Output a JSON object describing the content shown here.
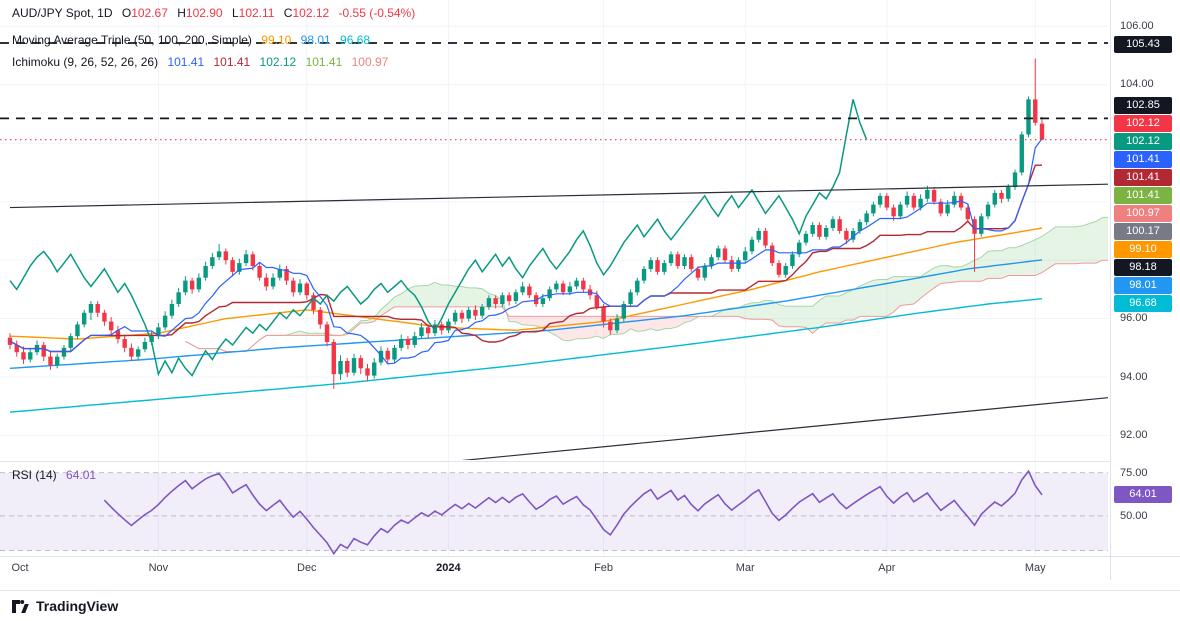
{
  "header": {
    "symbol_line": "AUD/JPY Spot, 1D",
    "change_color": "#f23645",
    "ohlc": [
      {
        "label": "O",
        "value": "102.67"
      },
      {
        "label": "H",
        "value": "102.90"
      },
      {
        "label": "L",
        "value": "102.11"
      },
      {
        "label": "C",
        "value": "102.12"
      }
    ],
    "change": "-0.55 (-0.54%)",
    "ma_title": "Moving Average Triple (50, 100, 200, Simple)",
    "ma_values": [
      {
        "text": "99.10",
        "color": "#ff9800"
      },
      {
        "text": "98.01",
        "color": "#2196f3"
      },
      {
        "text": "96.68",
        "color": "#00bcd4"
      }
    ],
    "ichimoku_title": "Ichimoku (9, 26, 52, 26, 26)",
    "ichimoku_values": [
      {
        "text": "101.41",
        "color": "#2962ff"
      },
      {
        "text": "101.41",
        "color": "#b22833"
      },
      {
        "text": "102.12",
        "color": "#089981"
      },
      {
        "text": "101.41",
        "color": "#7cb342"
      },
      {
        "text": "100.97",
        "color": "#f08080"
      }
    ]
  },
  "rsi_legend": {
    "title": "RSI (14)",
    "value": "64.01",
    "value_color": "#7e57c2"
  },
  "price_axis": {
    "ticks": [
      {
        "label": "106.00"
      },
      {
        "label": "104.00"
      },
      {
        "label": "96.00"
      },
      {
        "label": "94.00"
      },
      {
        "label": "92.00"
      }
    ],
    "badges": [
      {
        "label": "105.43",
        "color": "#131722"
      },
      {
        "label": "102.85",
        "color": "#131722"
      },
      {
        "label": "102.12",
        "color": "#f23645"
      },
      {
        "label": "102.12",
        "color": "#089981"
      },
      {
        "label": "101.41",
        "color": "#2962ff"
      },
      {
        "label": "101.41",
        "color": "#b22833"
      },
      {
        "label": "101.41",
        "color": "#7cb342"
      },
      {
        "label": "100.97",
        "color": "#f08080"
      },
      {
        "label": "100.17",
        "color": "#787b86"
      },
      {
        "label": "99.10",
        "color": "#ff9800"
      },
      {
        "label": "98.18",
        "color": "#131722"
      },
      {
        "label": "98.01",
        "color": "#2196f3"
      },
      {
        "label": "96.68",
        "color": "#00bcd4"
      }
    ],
    "rsi_ticks": [
      {
        "label": "75.00"
      },
      {
        "label": "50.00"
      }
    ],
    "rsi_badge": {
      "label": "64.01",
      "color": "#7e57c2"
    }
  },
  "time_axis": {
    "labels": [
      {
        "text": "Oct",
        "bar": 0
      },
      {
        "text": "Nov",
        "bar": 22
      },
      {
        "text": "Dec",
        "bar": 44
      },
      {
        "text": "2024",
        "bar": 65,
        "bold": true
      },
      {
        "text": "Feb",
        "bar": 88
      },
      {
        "text": "Mar",
        "bar": 109
      },
      {
        "text": "Apr",
        "bar": 130
      },
      {
        "text": "May",
        "bar": 152
      }
    ]
  },
  "footer": {
    "brand": "TradingView"
  },
  "chart_data": {
    "type": "candlestick",
    "symbol": "AUD/JPY Spot",
    "interval": "1D",
    "last": {
      "open": 102.67,
      "high": 102.9,
      "low": 102.11,
      "close": 102.12,
      "change": -0.55,
      "change_pct": -0.54
    },
    "price_ylim": [
      91.3,
      106.9
    ],
    "colors": {
      "up": "#089981",
      "down": "#f23645"
    },
    "candles": [
      [
        95.35,
        95.5,
        94.95,
        95.1
      ],
      [
        95.1,
        95.25,
        94.7,
        94.85
      ],
      [
        94.85,
        95.05,
        94.45,
        94.6
      ],
      [
        94.6,
        95.0,
        94.5,
        94.85
      ],
      [
        94.85,
        95.25,
        94.75,
        95.1
      ],
      [
        95.1,
        95.2,
        94.55,
        94.7
      ],
      [
        94.7,
        94.9,
        94.25,
        94.4
      ],
      [
        94.4,
        94.8,
        94.3,
        94.7
      ],
      [
        94.7,
        95.1,
        94.6,
        95.0
      ],
      [
        95.0,
        95.5,
        94.9,
        95.4
      ],
      [
        95.4,
        95.9,
        95.3,
        95.8
      ],
      [
        95.8,
        96.3,
        95.7,
        96.2
      ],
      [
        96.2,
        96.6,
        95.95,
        96.5
      ],
      [
        96.5,
        96.6,
        96.05,
        96.2
      ],
      [
        96.2,
        96.3,
        95.75,
        95.9
      ],
      [
        95.9,
        96.05,
        95.45,
        95.6
      ],
      [
        95.6,
        95.75,
        95.15,
        95.3
      ],
      [
        95.3,
        95.45,
        94.85,
        95.0
      ],
      [
        95.0,
        95.15,
        94.55,
        94.7
      ],
      [
        94.7,
        95.05,
        94.6,
        94.95
      ],
      [
        94.95,
        95.35,
        94.85,
        95.2
      ],
      [
        95.2,
        95.55,
        95.1,
        95.4
      ],
      [
        95.4,
        95.85,
        95.3,
        95.7
      ],
      [
        95.7,
        96.25,
        95.6,
        96.1
      ],
      [
        96.1,
        96.65,
        96.0,
        96.5
      ],
      [
        96.5,
        97.05,
        96.4,
        96.9
      ],
      [
        96.9,
        97.45,
        96.8,
        97.3
      ],
      [
        97.3,
        97.4,
        96.85,
        97.0
      ],
      [
        97.0,
        97.55,
        96.9,
        97.4
      ],
      [
        97.4,
        97.95,
        97.3,
        97.8
      ],
      [
        97.8,
        98.25,
        97.7,
        98.1
      ],
      [
        98.1,
        98.55,
        98.0,
        98.3
      ],
      [
        98.3,
        98.4,
        97.85,
        98.0
      ],
      [
        98.0,
        98.1,
        97.45,
        97.6
      ],
      [
        97.6,
        98.05,
        97.5,
        97.9
      ],
      [
        97.9,
        98.35,
        97.8,
        98.2
      ],
      [
        98.2,
        98.3,
        97.65,
        97.8
      ],
      [
        97.8,
        97.9,
        97.3,
        97.4
      ],
      [
        97.4,
        97.55,
        96.95,
        97.1
      ],
      [
        97.1,
        97.55,
        97.0,
        97.4
      ],
      [
        97.4,
        97.85,
        97.3,
        97.7
      ],
      [
        97.7,
        97.8,
        97.15,
        97.3
      ],
      [
        97.3,
        97.4,
        96.75,
        96.9
      ],
      [
        96.9,
        97.35,
        96.8,
        97.2
      ],
      [
        97.2,
        97.25,
        96.65,
        96.8
      ],
      [
        96.8,
        96.9,
        96.15,
        96.3
      ],
      [
        96.3,
        96.4,
        95.65,
        95.8
      ],
      [
        95.8,
        95.9,
        95.05,
        95.2
      ],
      [
        95.2,
        95.3,
        93.6,
        94.1
      ],
      [
        94.1,
        94.75,
        93.9,
        94.55
      ],
      [
        94.55,
        94.65,
        94.0,
        94.15
      ],
      [
        94.15,
        94.8,
        94.05,
        94.65
      ],
      [
        94.65,
        94.75,
        94.1,
        94.3
      ],
      [
        94.3,
        94.45,
        93.85,
        94.05
      ],
      [
        94.05,
        94.65,
        93.95,
        94.5
      ],
      [
        94.5,
        95.05,
        94.4,
        94.9
      ],
      [
        94.9,
        95.0,
        94.45,
        94.6
      ],
      [
        94.6,
        95.1,
        94.5,
        95.0
      ],
      [
        95.0,
        95.45,
        94.9,
        95.3
      ],
      [
        95.3,
        95.4,
        94.95,
        95.1
      ],
      [
        95.1,
        95.55,
        95.0,
        95.4
      ],
      [
        95.4,
        95.85,
        95.3,
        95.7
      ],
      [
        95.7,
        95.8,
        95.35,
        95.5
      ],
      [
        95.5,
        95.95,
        95.4,
        95.8
      ],
      [
        95.8,
        95.9,
        95.45,
        95.6
      ],
      [
        95.6,
        96.0,
        95.5,
        95.9
      ],
      [
        95.9,
        96.3,
        95.8,
        96.2
      ],
      [
        96.2,
        96.3,
        95.85,
        96.0
      ],
      [
        96.0,
        96.4,
        95.9,
        96.3
      ],
      [
        96.3,
        96.45,
        95.95,
        96.1
      ],
      [
        96.1,
        96.5,
        96.0,
        96.4
      ],
      [
        96.4,
        96.8,
        96.3,
        96.7
      ],
      [
        96.7,
        96.8,
        96.35,
        96.5
      ],
      [
        96.5,
        96.9,
        96.4,
        96.8
      ],
      [
        96.8,
        96.9,
        96.45,
        96.6
      ],
      [
        96.6,
        97.0,
        96.5,
        96.9
      ],
      [
        96.9,
        97.25,
        96.8,
        97.1
      ],
      [
        97.1,
        97.2,
        96.7,
        96.8
      ],
      [
        96.8,
        96.9,
        96.4,
        96.5
      ],
      [
        96.5,
        96.85,
        96.4,
        96.7
      ],
      [
        96.7,
        97.1,
        96.6,
        97.0
      ],
      [
        97.0,
        97.3,
        96.9,
        97.2
      ],
      [
        97.2,
        97.3,
        96.8,
        96.9
      ],
      [
        96.9,
        97.25,
        96.8,
        97.1
      ],
      [
        97.1,
        97.4,
        97.0,
        97.3
      ],
      [
        97.3,
        97.4,
        96.9,
        97.0
      ],
      [
        97.0,
        97.15,
        96.65,
        96.8
      ],
      [
        96.8,
        96.95,
        96.3,
        96.4
      ],
      [
        96.4,
        96.5,
        95.7,
        95.9
      ],
      [
        95.9,
        96.0,
        95.45,
        95.6
      ],
      [
        95.6,
        96.15,
        95.5,
        96.0
      ],
      [
        96.0,
        96.6,
        95.9,
        96.5
      ],
      [
        96.5,
        97.0,
        96.4,
        96.9
      ],
      [
        96.9,
        97.4,
        96.8,
        97.3
      ],
      [
        97.3,
        97.8,
        97.2,
        97.7
      ],
      [
        97.7,
        98.1,
        97.6,
        98.0
      ],
      [
        98.0,
        98.1,
        97.5,
        97.6
      ],
      [
        97.6,
        98.0,
        97.5,
        97.9
      ],
      [
        97.9,
        98.3,
        97.8,
        98.2
      ],
      [
        98.2,
        98.3,
        97.7,
        97.8
      ],
      [
        97.8,
        98.2,
        97.7,
        98.1
      ],
      [
        98.1,
        98.2,
        97.6,
        97.7
      ],
      [
        97.7,
        97.8,
        97.3,
        97.4
      ],
      [
        97.4,
        97.9,
        97.3,
        97.8
      ],
      [
        97.8,
        98.2,
        97.7,
        98.1
      ],
      [
        98.1,
        98.5,
        98.0,
        98.4
      ],
      [
        98.4,
        98.5,
        97.9,
        98.0
      ],
      [
        98.0,
        98.15,
        97.6,
        97.7
      ],
      [
        97.7,
        98.1,
        97.6,
        98.0
      ],
      [
        98.0,
        98.45,
        97.9,
        98.3
      ],
      [
        98.3,
        98.8,
        98.2,
        98.7
      ],
      [
        98.7,
        99.1,
        98.6,
        99.0
      ],
      [
        99.0,
        99.1,
        98.4,
        98.5
      ],
      [
        98.5,
        98.6,
        97.8,
        97.9
      ],
      [
        97.9,
        98.0,
        97.4,
        97.5
      ],
      [
        97.5,
        97.9,
        97.4,
        97.8
      ],
      [
        97.8,
        98.3,
        97.7,
        98.2
      ],
      [
        98.2,
        98.7,
        98.1,
        98.6
      ],
      [
        98.6,
        99.0,
        98.5,
        98.9
      ],
      [
        98.9,
        99.3,
        98.8,
        99.2
      ],
      [
        99.2,
        99.3,
        98.7,
        98.8
      ],
      [
        98.8,
        99.2,
        98.7,
        99.1
      ],
      [
        99.1,
        99.5,
        99.0,
        99.4
      ],
      [
        99.4,
        99.5,
        98.9,
        99.0
      ],
      [
        99.0,
        99.1,
        98.55,
        98.7
      ],
      [
        98.7,
        99.1,
        98.6,
        99.0
      ],
      [
        99.0,
        99.4,
        98.9,
        99.3
      ],
      [
        99.3,
        99.7,
        99.2,
        99.6
      ],
      [
        99.6,
        100.0,
        99.5,
        99.9
      ],
      [
        99.9,
        100.3,
        99.8,
        100.2
      ],
      [
        100.2,
        100.3,
        99.7,
        99.8
      ],
      [
        99.8,
        99.9,
        99.35,
        99.5
      ],
      [
        99.5,
        100.0,
        99.4,
        99.9
      ],
      [
        99.9,
        100.35,
        99.8,
        100.2
      ],
      [
        100.2,
        100.3,
        99.7,
        99.8
      ],
      [
        99.8,
        100.25,
        99.7,
        100.1
      ],
      [
        100.1,
        100.55,
        100.0,
        100.4
      ],
      [
        100.4,
        100.5,
        99.9,
        100.0
      ],
      [
        100.0,
        100.1,
        99.5,
        99.6
      ],
      [
        99.6,
        100.05,
        99.5,
        99.9
      ],
      [
        99.9,
        100.35,
        99.8,
        100.2
      ],
      [
        100.2,
        100.3,
        99.7,
        99.8
      ],
      [
        99.8,
        99.9,
        99.3,
        99.4
      ],
      [
        99.4,
        99.5,
        97.6,
        98.9
      ],
      [
        98.9,
        99.6,
        98.8,
        99.5
      ],
      [
        99.5,
        100.0,
        99.4,
        99.9
      ],
      [
        99.9,
        100.4,
        99.8,
        100.3
      ],
      [
        100.3,
        100.4,
        99.95,
        100.1
      ],
      [
        100.1,
        100.6,
        100.0,
        100.5
      ],
      [
        100.5,
        101.1,
        100.4,
        101.0
      ],
      [
        101.0,
        102.4,
        100.9,
        102.3
      ],
      [
        102.3,
        103.6,
        102.2,
        103.5
      ],
      [
        103.5,
        104.9,
        102.6,
        102.7
      ],
      [
        102.67,
        102.9,
        102.11,
        102.12
      ]
    ],
    "ichimoku": {
      "params": [
        9,
        26,
        52,
        26,
        26
      ],
      "display_values": [
        101.41,
        101.41,
        102.12,
        101.41,
        100.97
      ],
      "colors": {
        "tenkan": "#2962ff",
        "kijun": "#b22833",
        "chikou": "#089981",
        "spanA": "#a5d6a7",
        "spanB": "#ef9a9a",
        "cloud_up": "rgba(76,175,80,0.14)",
        "cloud_down": "rgba(244,67,54,0.12)"
      }
    },
    "moving_averages": [
      {
        "length": 50,
        "type": "SMA",
        "last": 99.1,
        "color": "#ff9800",
        "points": [
          [
            0,
            95.4
          ],
          [
            10,
            95.3
          ],
          [
            22,
            95.5
          ],
          [
            32,
            96.0
          ],
          [
            44,
            96.3
          ],
          [
            54,
            96.0
          ],
          [
            64,
            95.7
          ],
          [
            75,
            95.6
          ],
          [
            88,
            95.9
          ],
          [
            100,
            96.5
          ],
          [
            110,
            97.0
          ],
          [
            120,
            97.6
          ],
          [
            130,
            98.1
          ],
          [
            140,
            98.6
          ],
          [
            148,
            98.9
          ],
          [
            153,
            99.1
          ]
        ]
      },
      {
        "length": 100,
        "type": "SMA",
        "last": 98.01,
        "color": "#2196f3",
        "points": [
          [
            0,
            94.3
          ],
          [
            20,
            94.6
          ],
          [
            40,
            95.0
          ],
          [
            60,
            95.3
          ],
          [
            80,
            95.6
          ],
          [
            100,
            96.1
          ],
          [
            115,
            96.6
          ],
          [
            130,
            97.2
          ],
          [
            142,
            97.7
          ],
          [
            153,
            98.01
          ]
        ]
      },
      {
        "length": 200,
        "type": "SMA",
        "last": 96.68,
        "color": "#00bcd4",
        "points": [
          [
            0,
            92.8
          ],
          [
            25,
            93.3
          ],
          [
            50,
            93.8
          ],
          [
            75,
            94.4
          ],
          [
            100,
            95.1
          ],
          [
            120,
            95.7
          ],
          [
            135,
            96.2
          ],
          [
            145,
            96.5
          ],
          [
            153,
            96.68
          ]
        ]
      }
    ],
    "levels": [
      {
        "price": 105.43,
        "color": "#131722",
        "style": "dashed"
      },
      {
        "price": 102.85,
        "color": "#131722",
        "style": "dashed"
      }
    ],
    "last_price_line": {
      "price": 102.12,
      "color": "#f23645",
      "style": "dotted"
    },
    "trendlines": [
      {
        "x1_bar": 0,
        "y1_price": 99.8,
        "x2_bar": 163,
        "y2_price": 100.6,
        "color": "#2a2e39"
      },
      {
        "x1_bar": 65,
        "y1_price": 91.1,
        "x2_bar": 163,
        "y2_price": 93.3,
        "color": "#2a2e39"
      }
    ],
    "rsi": {
      "period": 14,
      "last": 64.01,
      "color": "#7e57c2",
      "ylim": [
        28,
        80
      ],
      "band": {
        "upper": 75,
        "middle": 50,
        "lower": 30,
        "fill": "rgba(126,87,194,0.10)"
      }
    },
    "x_axis": {
      "months": [
        "Oct",
        "Nov",
        "Dec",
        "2024",
        "Feb",
        "Mar",
        "Apr",
        "May"
      ],
      "month_start_bars": [
        0,
        22,
        44,
        65,
        88,
        109,
        130,
        152
      ]
    }
  }
}
